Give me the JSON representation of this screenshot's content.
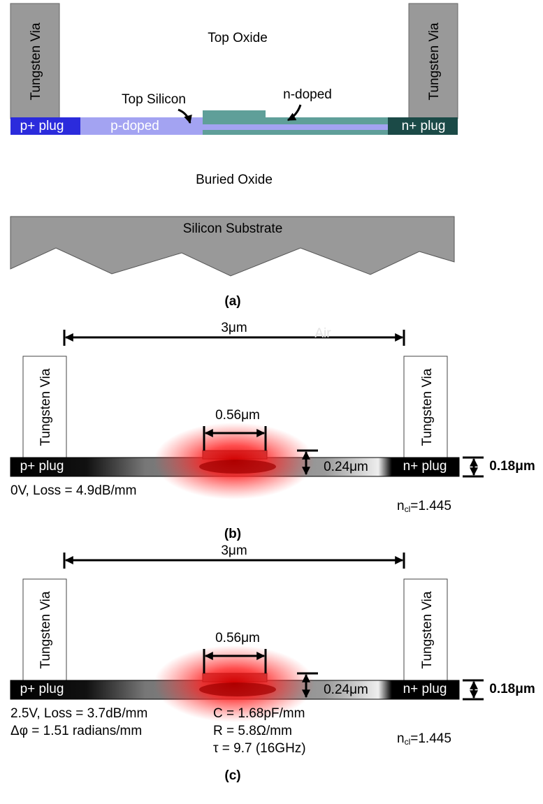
{
  "panel_a": {
    "left_via": "Tungsten Via",
    "right_via": "Tungsten Via",
    "top_oxide": "Top Oxide",
    "top_silicon": "Top Silicon",
    "n_doped": "n-doped",
    "p_plus_plug": "p+ plug",
    "p_doped": "p-doped",
    "n_plus_plug": "n+ plug",
    "buried_oxide": "Buried Oxide",
    "substrate": "Silicon Substrate",
    "caption": "(a)"
  },
  "panel_b": {
    "width_label": "3μm",
    "air_label": "Air",
    "left_via": "Tungsten Via",
    "right_via": "Tungsten Via",
    "rib_width": "0.56μm",
    "rib_height": "0.24μm",
    "slab_height": "0.18μm",
    "p_plus_plug": "p+ plug",
    "n_plus_plug": "n+ plug",
    "conditions": [
      "0V, Loss = 4.9dB/mm"
    ],
    "index": {
      "symbol": "n",
      "subscript": "cl",
      "rest": "=1.445"
    },
    "caption": "(b)"
  },
  "panel_c": {
    "width_label": "3μm",
    "left_via": "Tungsten Via",
    "right_via": "Tungsten Via",
    "rib_width": "0.56μm",
    "rib_height": "0.24μm",
    "slab_height": "0.18μm",
    "p_plus_plug": "p+ plug",
    "n_plus_plug": "n+ plug",
    "conditions": [
      "2.5V, Loss = 3.7dB/mm",
      "Δφ = 1.51 radians/mm"
    ],
    "parameters": [
      "C = 1.68pF/mm",
      "R = 5.8Ω/mm",
      "τ = 9.7 (16GHz)"
    ],
    "index": {
      "symbol": "n",
      "subscript": "cl",
      "rest": "=1.445"
    },
    "caption": "(c)"
  }
}
